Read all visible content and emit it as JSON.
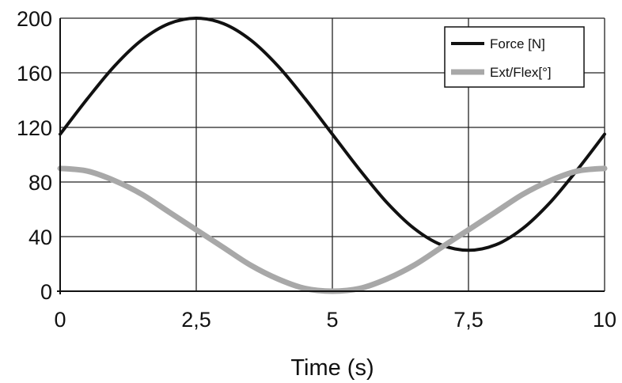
{
  "chart_data": {
    "type": "line",
    "title": "",
    "xlabel": "Time (s)",
    "ylabel": "",
    "xlim": [
      0,
      10
    ],
    "ylim": [
      0,
      200
    ],
    "xticks": [
      0,
      2.5,
      5,
      7.5,
      10
    ],
    "xtick_labels": [
      "0",
      "2,5",
      "5",
      "7,5",
      "10"
    ],
    "yticks": [
      0,
      40,
      80,
      120,
      160,
      200
    ],
    "ytick_labels": [
      "0",
      "40",
      "80",
      "120",
      "160",
      "200"
    ],
    "grid": true,
    "legend_position": "top-right",
    "x": [
      0,
      0.5,
      1,
      1.5,
      2,
      2.5,
      3,
      3.5,
      4,
      4.5,
      5,
      5.5,
      6,
      6.5,
      7,
      7.5,
      8,
      8.5,
      9,
      9.5,
      10
    ],
    "series": [
      {
        "name": "Force [N]",
        "color": "#111111",
        "values": [
          115,
          141,
          165,
          184,
          196,
          200,
          196,
          184,
          165,
          141,
          115,
          89,
          65,
          46,
          34,
          30,
          34,
          46,
          65,
          89,
          115
        ]
      },
      {
        "name": "Ext/Flex[°]",
        "color": "#a8a8a8",
        "values": [
          90,
          88,
          81,
          71,
          58,
          45,
          32,
          19,
          9,
          2,
          0,
          2,
          9,
          19,
          32,
          45,
          58,
          71,
          81,
          88,
          90
        ]
      }
    ]
  }
}
